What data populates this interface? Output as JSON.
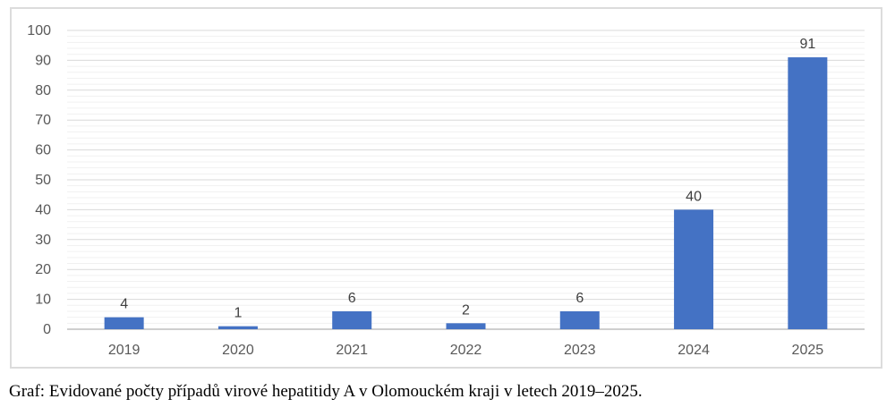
{
  "chart_data": {
    "type": "bar",
    "categories": [
      "2019",
      "2020",
      "2021",
      "2022",
      "2023",
      "2024",
      "2025"
    ],
    "values": [
      4,
      1,
      6,
      2,
      6,
      40,
      91
    ],
    "data_labels": [
      "4",
      "1",
      "6",
      "2",
      "6",
      "40",
      "91"
    ],
    "title": "",
    "xlabel": "",
    "ylabel": "",
    "ylim": [
      0,
      100
    ],
    "y_ticks": [
      0,
      10,
      20,
      30,
      40,
      50,
      60,
      70,
      80,
      90,
      100
    ],
    "y_major_step": 10,
    "y_minor_step": 2,
    "grid": "on",
    "legend_position": "none",
    "colors": {
      "bar": "#4472C4",
      "grid_major": "#D9D9D9",
      "grid_minor": "#F1F1F1",
      "axis_line": "#BFBFBF",
      "tick_label": "#595959",
      "data_label": "#3F3F3F",
      "frame_border": "#DCDCDC",
      "background": "#FFFFFF"
    }
  },
  "caption": {
    "text": "Graf: Evidované počty případů virové hepatitidy A v Olomouckém kraji v letech 2019–2025."
  }
}
